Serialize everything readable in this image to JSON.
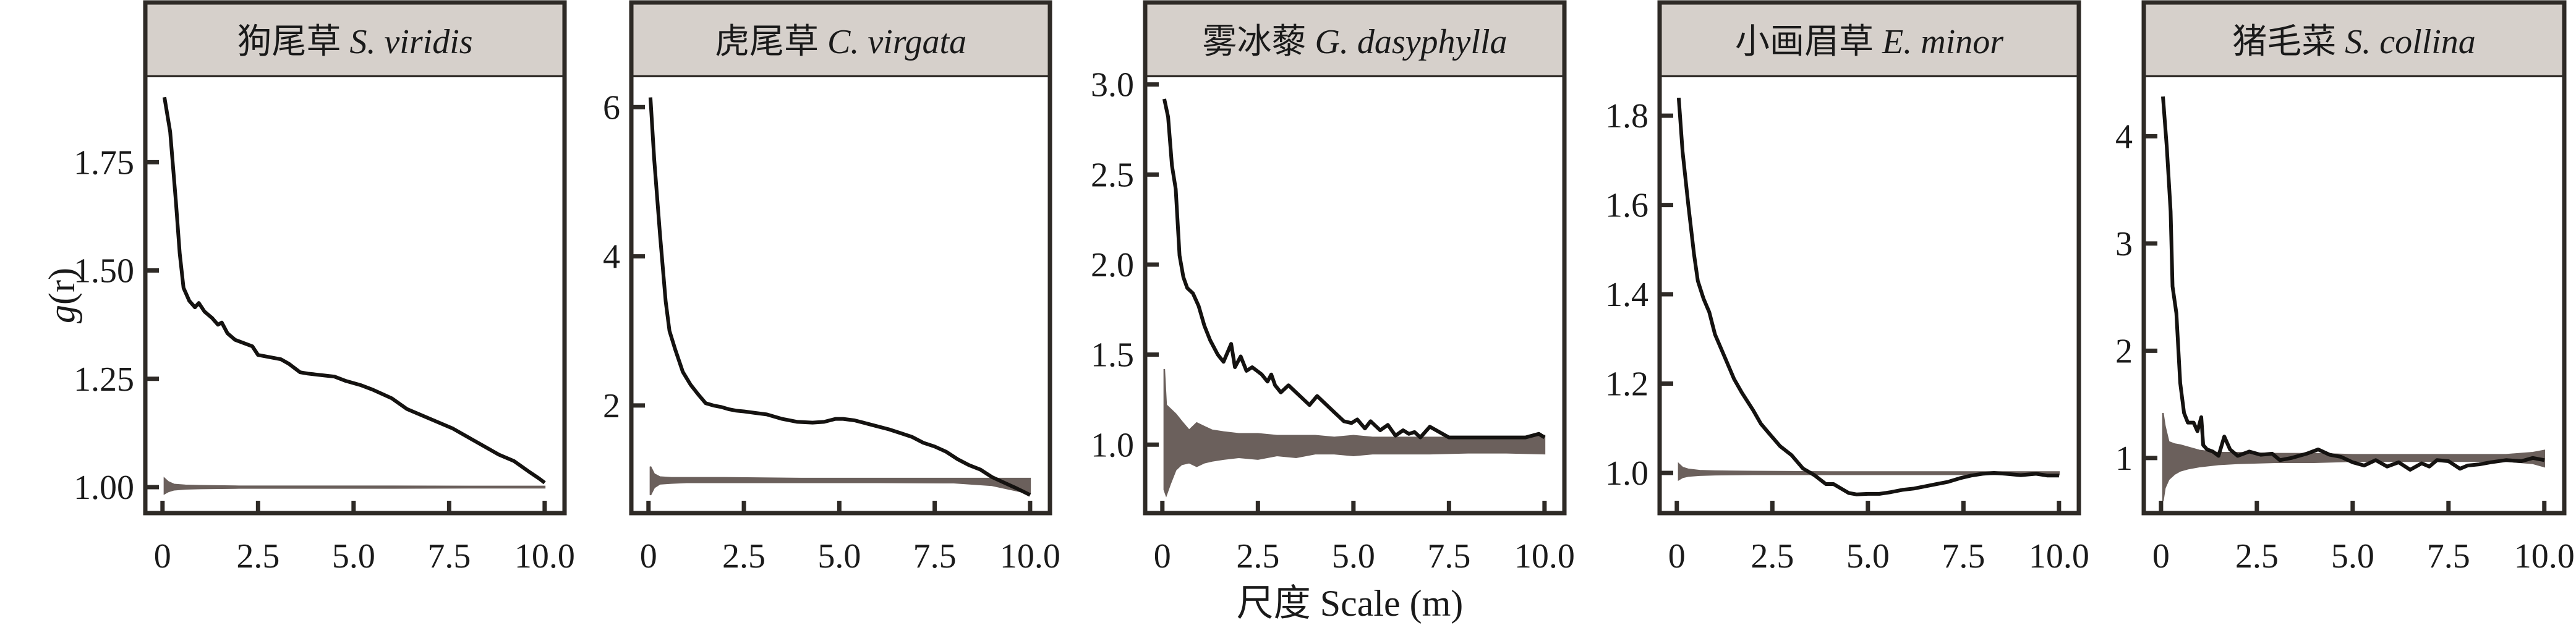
{
  "chart_data": {
    "type": "line",
    "layout": "facet-row",
    "xlabel": "尺度 Scale (m)",
    "ylabel": "g(r)",
    "ylabel_italic_part": "g",
    "colors": {
      "observed_line": "#141210",
      "envelope_fill": "#6b605c",
      "frame": "#2e2a26",
      "strip_fill": "#d6d0cb",
      "background": "#ffffff"
    },
    "legend": "none",
    "grid": false,
    "panels": [
      {
        "title_cn": "狗尾草",
        "title_latin": "S. viridis",
        "xlim": [
          -0.45,
          10.52
        ],
        "ylim": [
          0.94,
          1.946
        ],
        "xticks": [
          0,
          2.5,
          5.0,
          7.5,
          10.0
        ],
        "xtick_labels": [
          "0",
          "2.5",
          "5.0",
          "7.5",
          "10.0"
        ],
        "yticks": [
          1.0,
          1.25,
          1.5,
          1.75
        ],
        "ytick_labels": [
          "1.00",
          "1.25",
          "1.50",
          "1.75"
        ],
        "series": [
          {
            "name": "observed g(r)",
            "x": [
              0.05,
              0.2,
              0.35,
              0.45,
              0.55,
              0.7,
              0.85,
              0.95,
              1.1,
              1.3,
              1.45,
              1.55,
              1.7,
              1.9,
              2.2,
              2.35,
              2.5,
              2.8,
              3.1,
              3.3,
              3.6,
              3.8,
              4.2,
              4.5,
              4.8,
              5.2,
              5.5,
              6.0,
              6.4,
              6.8,
              7.2,
              7.6,
              8.0,
              8.4,
              8.8,
              9.2,
              9.6,
              9.85,
              10.0
            ],
            "y": [
              1.9,
              1.82,
              1.66,
              1.54,
              1.46,
              1.43,
              1.415,
              1.425,
              1.405,
              1.39,
              1.375,
              1.38,
              1.355,
              1.34,
              1.33,
              1.325,
              1.305,
              1.3,
              1.295,
              1.285,
              1.265,
              1.262,
              1.258,
              1.255,
              1.245,
              1.235,
              1.225,
              1.205,
              1.18,
              1.165,
              1.15,
              1.135,
              1.115,
              1.095,
              1.075,
              1.06,
              1.035,
              1.02,
              1.01
            ]
          },
          {
            "name": "CSR envelope",
            "x": [
              0.05,
              0.15,
              0.3,
              0.6,
              1.0,
              2.0,
              4.0,
              6.0,
              8.0,
              10.0
            ],
            "lower": [
              0.985,
              0.99,
              0.994,
              0.996,
              0.997,
              0.998,
              0.998,
              0.998,
              0.9985,
              0.9985
            ],
            "upper": [
              1.02,
              1.012,
              1.006,
              1.004,
              1.003,
              1.002,
              1.002,
              1.002,
              1.0015,
              1.0015
            ]
          }
        ]
      },
      {
        "title_cn": "虎尾草",
        "title_latin": "C. virgata",
        "xlim": [
          -0.45,
          10.52
        ],
        "ylim": [
          0.557,
          6.4
        ],
        "xticks": [
          0,
          2.5,
          5.0,
          7.5,
          10.0
        ],
        "xtick_labels": [
          "0",
          "2.5",
          "5.0",
          "7.5",
          "10.0"
        ],
        "yticks": [
          2,
          4,
          6
        ],
        "ytick_labels": [
          "2",
          "4",
          "6"
        ],
        "series": [
          {
            "name": "observed g(r)",
            "x": [
              0.05,
              0.15,
              0.3,
              0.45,
              0.55,
              0.7,
              0.9,
              1.1,
              1.3,
              1.5,
              1.7,
              1.9,
              2.1,
              2.3,
              2.5,
              2.8,
              3.1,
              3.5,
              3.9,
              4.3,
              4.6,
              4.9,
              5.1,
              5.4,
              5.7,
              6.0,
              6.3,
              6.6,
              6.9,
              7.2,
              7.5,
              7.8,
              8.1,
              8.4,
              8.7,
              9.0,
              9.3,
              9.6,
              9.8,
              10.0
            ],
            "y": [
              6.13,
              5.3,
              4.3,
              3.4,
              3.0,
              2.75,
              2.45,
              2.28,
              2.15,
              2.03,
              2.0,
              1.98,
              1.95,
              1.93,
              1.92,
              1.9,
              1.88,
              1.82,
              1.78,
              1.77,
              1.78,
              1.82,
              1.82,
              1.8,
              1.76,
              1.72,
              1.68,
              1.63,
              1.58,
              1.5,
              1.45,
              1.38,
              1.28,
              1.2,
              1.14,
              1.04,
              0.97,
              0.9,
              0.85,
              0.8
            ]
          },
          {
            "name": "CSR envelope",
            "x": [
              0.05,
              0.15,
              0.3,
              0.6,
              1.0,
              2.0,
              4.0,
              6.0,
              8.0,
              9.0,
              10.0
            ],
            "lower": [
              0.8,
              0.9,
              0.95,
              0.96,
              0.97,
              0.97,
              0.97,
              0.97,
              0.965,
              0.93,
              0.82
            ],
            "upper": [
              1.18,
              1.08,
              1.04,
              1.03,
              1.03,
              1.03,
              1.02,
              1.02,
              1.02,
              1.02,
              1.02
            ]
          }
        ]
      },
      {
        "title_cn": "雾冰藜",
        "title_latin": "G. dasyphylla",
        "xlim": [
          -0.45,
          10.52
        ],
        "ylim": [
          0.62,
          3.04
        ],
        "xticks": [
          0,
          2.5,
          5.0,
          7.5,
          10.0
        ],
        "xtick_labels": [
          "0",
          "2.5",
          "5.0",
          "7.5",
          "10.0"
        ],
        "yticks": [
          1.0,
          1.5,
          2.0,
          2.5,
          3.0
        ],
        "ytick_labels": [
          "1.0",
          "1.5",
          "2.0",
          "2.5",
          "3.0"
        ],
        "series": [
          {
            "name": "observed g(r)",
            "x": [
              0.05,
              0.15,
              0.25,
              0.35,
              0.45,
              0.55,
              0.65,
              0.8,
              0.95,
              1.1,
              1.25,
              1.45,
              1.6,
              1.8,
              1.9,
              2.05,
              2.2,
              2.35,
              2.6,
              2.75,
              2.85,
              2.95,
              3.1,
              3.3,
              3.5,
              3.7,
              3.85,
              4.05,
              4.25,
              4.5,
              4.75,
              4.95,
              5.1,
              5.3,
              5.45,
              5.7,
              5.9,
              6.1,
              6.3,
              6.45,
              6.6,
              6.75,
              7.0,
              7.5,
              8.0,
              8.5,
              9.0,
              9.5,
              9.85,
              10.0
            ],
            "y": [
              2.92,
              2.82,
              2.55,
              2.42,
              2.05,
              1.93,
              1.87,
              1.84,
              1.77,
              1.66,
              1.58,
              1.5,
              1.46,
              1.56,
              1.43,
              1.49,
              1.41,
              1.43,
              1.39,
              1.35,
              1.39,
              1.33,
              1.29,
              1.33,
              1.29,
              1.25,
              1.22,
              1.27,
              1.23,
              1.18,
              1.13,
              1.12,
              1.14,
              1.09,
              1.13,
              1.08,
              1.11,
              1.05,
              1.08,
              1.06,
              1.07,
              1.04,
              1.1,
              1.04,
              1.04,
              1.04,
              1.04,
              1.04,
              1.06,
              1.04
            ]
          },
          {
            "name": "CSR envelope",
            "x": [
              0.05,
              0.1,
              0.2,
              0.35,
              0.5,
              0.7,
              0.9,
              1.1,
              1.3,
              1.6,
              2.0,
              2.5,
              3.0,
              3.5,
              4.0,
              4.5,
              5.0,
              5.5,
              6.0,
              7.0,
              8.0,
              9.0,
              10.0
            ],
            "lower": [
              0.75,
              0.72,
              0.78,
              0.86,
              0.89,
              0.9,
              0.88,
              0.9,
              0.91,
              0.92,
              0.93,
              0.92,
              0.94,
              0.93,
              0.95,
              0.95,
              0.94,
              0.95,
              0.95,
              0.95,
              0.955,
              0.955,
              0.95
            ],
            "upper": [
              1.42,
              1.22,
              1.2,
              1.17,
              1.13,
              1.08,
              1.12,
              1.1,
              1.08,
              1.07,
              1.06,
              1.06,
              1.05,
              1.05,
              1.05,
              1.04,
              1.05,
              1.04,
              1.04,
              1.04,
              1.04,
              1.04,
              1.05
            ]
          }
        ]
      },
      {
        "title_cn": "小画眉草",
        "title_latin": "E. minor",
        "xlim": [
          -0.45,
          10.52
        ],
        "ylim": [
          0.91,
          1.886
        ],
        "xticks": [
          0,
          2.5,
          5.0,
          7.5,
          10.0
        ],
        "xtick_labels": [
          "0",
          "2.5",
          "5.0",
          "7.5",
          "10.0"
        ],
        "yticks": [
          1.0,
          1.2,
          1.4,
          1.6,
          1.8
        ],
        "ytick_labels": [
          "1.0",
          "1.2",
          "1.4",
          "1.6",
          "1.8"
        ],
        "series": [
          {
            "name": "observed g(r)",
            "x": [
              0.05,
              0.15,
              0.3,
              0.45,
              0.55,
              0.7,
              0.85,
              1.0,
              1.15,
              1.3,
              1.5,
              1.7,
              2.0,
              2.2,
              2.4,
              2.7,
              3.0,
              3.3,
              3.6,
              3.9,
              4.1,
              4.3,
              4.5,
              4.7,
              5.0,
              5.3,
              5.6,
              5.9,
              6.2,
              6.5,
              6.8,
              7.1,
              7.4,
              7.7,
              8.0,
              8.3,
              8.6,
              9.0,
              9.4,
              9.7,
              10.0
            ],
            "y": [
              1.84,
              1.72,
              1.6,
              1.49,
              1.43,
              1.39,
              1.36,
              1.31,
              1.28,
              1.25,
              1.21,
              1.18,
              1.14,
              1.11,
              1.09,
              1.06,
              1.04,
              1.01,
              0.995,
              0.975,
              0.975,
              0.965,
              0.955,
              0.952,
              0.953,
              0.953,
              0.957,
              0.962,
              0.965,
              0.97,
              0.975,
              0.98,
              0.988,
              0.994,
              0.998,
              1.0,
              0.998,
              0.995,
              0.998,
              0.994,
              0.994
            ]
          },
          {
            "name": "CSR envelope",
            "x": [
              0.05,
              0.15,
              0.3,
              0.6,
              1.0,
              2.0,
              4.0,
              6.0,
              8.0,
              10.0
            ],
            "lower": [
              0.985,
              0.99,
              0.993,
              0.995,
              0.996,
              0.997,
              0.997,
              0.997,
              0.997,
              0.996
            ],
            "upper": [
              1.02,
              1.012,
              1.008,
              1.005,
              1.004,
              1.003,
              1.002,
              1.002,
              1.002,
              1.002
            ]
          }
        ]
      },
      {
        "title_cn": "猪毛菜",
        "title_latin": "S. collina",
        "xlim": [
          -0.45,
          10.52
        ],
        "ylim": [
          0.486,
          4.55
        ],
        "xticks": [
          0,
          2.5,
          5.0,
          7.5,
          10.0
        ],
        "xtick_labels": [
          "0",
          "2.5",
          "5.0",
          "7.5",
          "10.0"
        ],
        "yticks": [
          1,
          2,
          3,
          4
        ],
        "ytick_labels": [
          "1",
          "2",
          "3",
          "4"
        ],
        "series": [
          {
            "name": "observed g(r)",
            "x": [
              0.05,
              0.15,
              0.25,
              0.3,
              0.4,
              0.5,
              0.6,
              0.7,
              0.85,
              0.95,
              1.05,
              1.1,
              1.2,
              1.35,
              1.5,
              1.65,
              1.8,
              2.0,
              2.3,
              2.6,
              2.9,
              3.1,
              3.4,
              3.8,
              4.1,
              4.4,
              4.7,
              5.0,
              5.3,
              5.6,
              5.9,
              6.2,
              6.5,
              6.8,
              7.0,
              7.2,
              7.5,
              7.8,
              8.0,
              8.3,
              8.6,
              9.0,
              9.4,
              9.7,
              10.0
            ],
            "y": [
              4.37,
              3.9,
              3.3,
              2.6,
              2.35,
              1.7,
              1.42,
              1.33,
              1.33,
              1.25,
              1.38,
              1.12,
              1.08,
              1.06,
              1.02,
              1.2,
              1.08,
              1.02,
              1.06,
              1.03,
              1.04,
              0.98,
              1.0,
              1.04,
              1.08,
              1.03,
              1.01,
              0.96,
              0.93,
              0.98,
              0.92,
              0.96,
              0.89,
              0.95,
              0.92,
              0.98,
              0.97,
              0.9,
              0.93,
              0.94,
              0.96,
              0.98,
              0.97,
              1.0,
              0.98
            ]
          },
          {
            "name": "CSR envelope",
            "x": [
              0.05,
              0.1,
              0.2,
              0.35,
              0.5,
              0.7,
              1.0,
              1.5,
              2.0,
              3.0,
              4.0,
              5.0,
              6.0,
              7.0,
              8.0,
              9.0,
              9.7,
              10.0
            ],
            "lower": [
              0.6,
              0.72,
              0.8,
              0.85,
              0.88,
              0.9,
              0.92,
              0.94,
              0.95,
              0.96,
              0.96,
              0.97,
              0.97,
              0.97,
              0.97,
              0.97,
              0.95,
              0.92
            ],
            "upper": [
              1.42,
              1.3,
              1.15,
              1.13,
              1.12,
              1.1,
              1.07,
              1.05,
              1.05,
              1.04,
              1.04,
              1.03,
              1.03,
              1.03,
              1.03,
              1.03,
              1.05,
              1.07
            ]
          }
        ]
      }
    ]
  }
}
